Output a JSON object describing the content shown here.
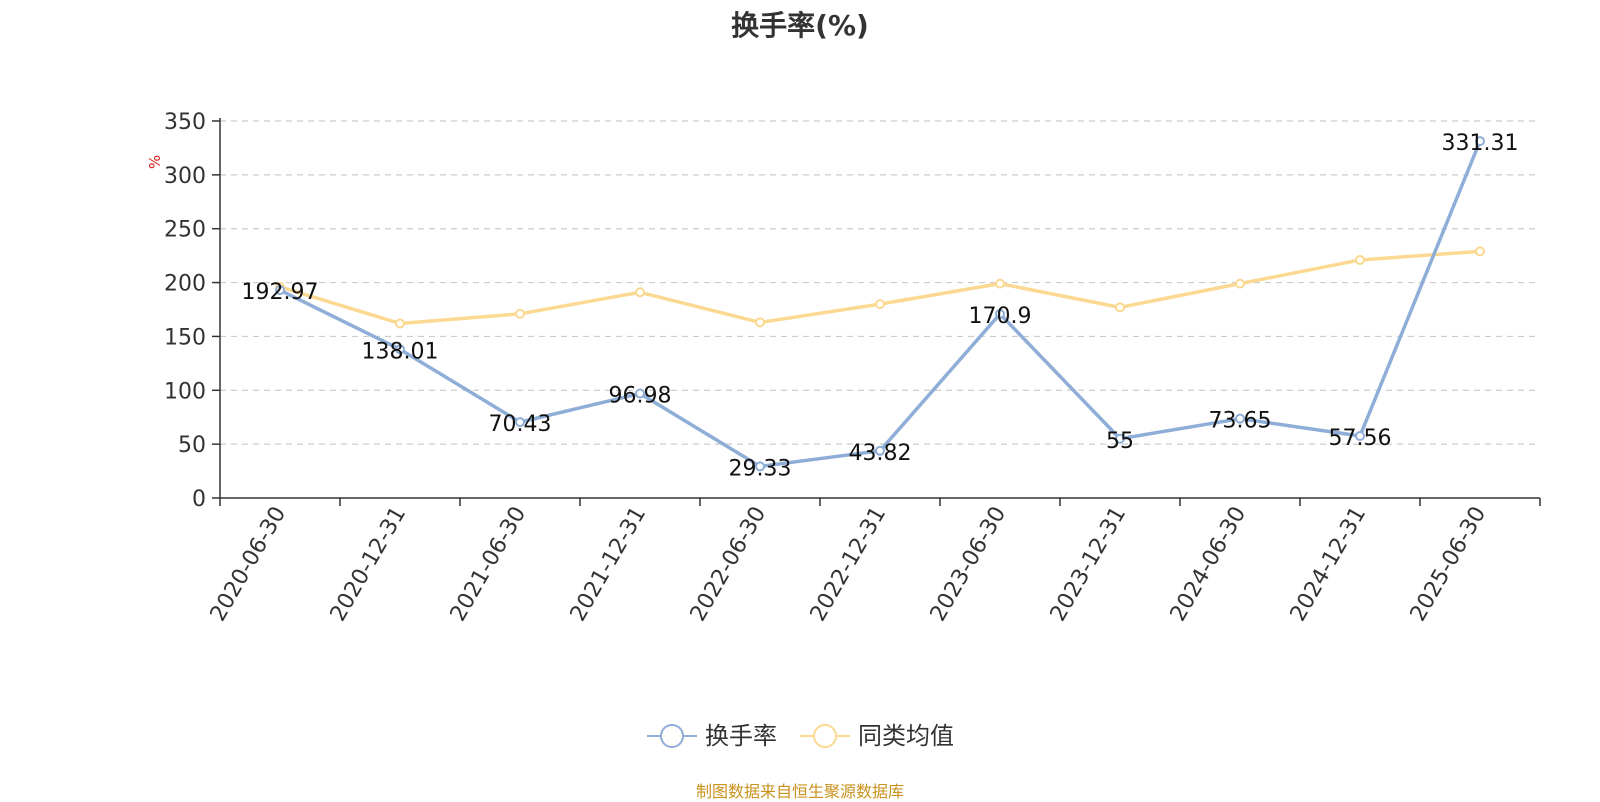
{
  "chart_data": {
    "type": "line",
    "title": "换手率(%)",
    "ylabel": "%",
    "xlabel": "",
    "ylim": [
      0,
      350
    ],
    "yticks": [
      0,
      50,
      100,
      150,
      200,
      250,
      300,
      350
    ],
    "grid": "horizontal dashed",
    "legend_position": "bottom-center",
    "categories": [
      "2020-06-30",
      "2020-12-31",
      "2021-06-30",
      "2021-12-31",
      "2022-06-30",
      "2022-12-31",
      "2023-06-30",
      "2023-12-31",
      "2024-06-30",
      "2024-12-31",
      "2025-06-30"
    ],
    "series": [
      {
        "name": "换手率",
        "color": "#8eaed8",
        "values": [
          192.97,
          138.01,
          70.43,
          96.98,
          29.33,
          43.82,
          170.9,
          55,
          73.65,
          57.56,
          331.31
        ],
        "labels": [
          "192.97",
          "138.01",
          "70.43",
          "96.98",
          "29.33",
          "43.82",
          "170.9",
          "55",
          "73.65",
          "57.56",
          "331.31"
        ]
      },
      {
        "name": "同类均值",
        "color": "#fbd992",
        "values": [
          196,
          162,
          171,
          191,
          163,
          180,
          199,
          177,
          199,
          221,
          229
        ]
      }
    ]
  },
  "source_note": "制图数据来自恒生聚源数据库",
  "colors": {
    "axis": "#333333",
    "grid": "#cccccc",
    "ylabel": "#e02020",
    "source_note": "#c9921c"
  }
}
